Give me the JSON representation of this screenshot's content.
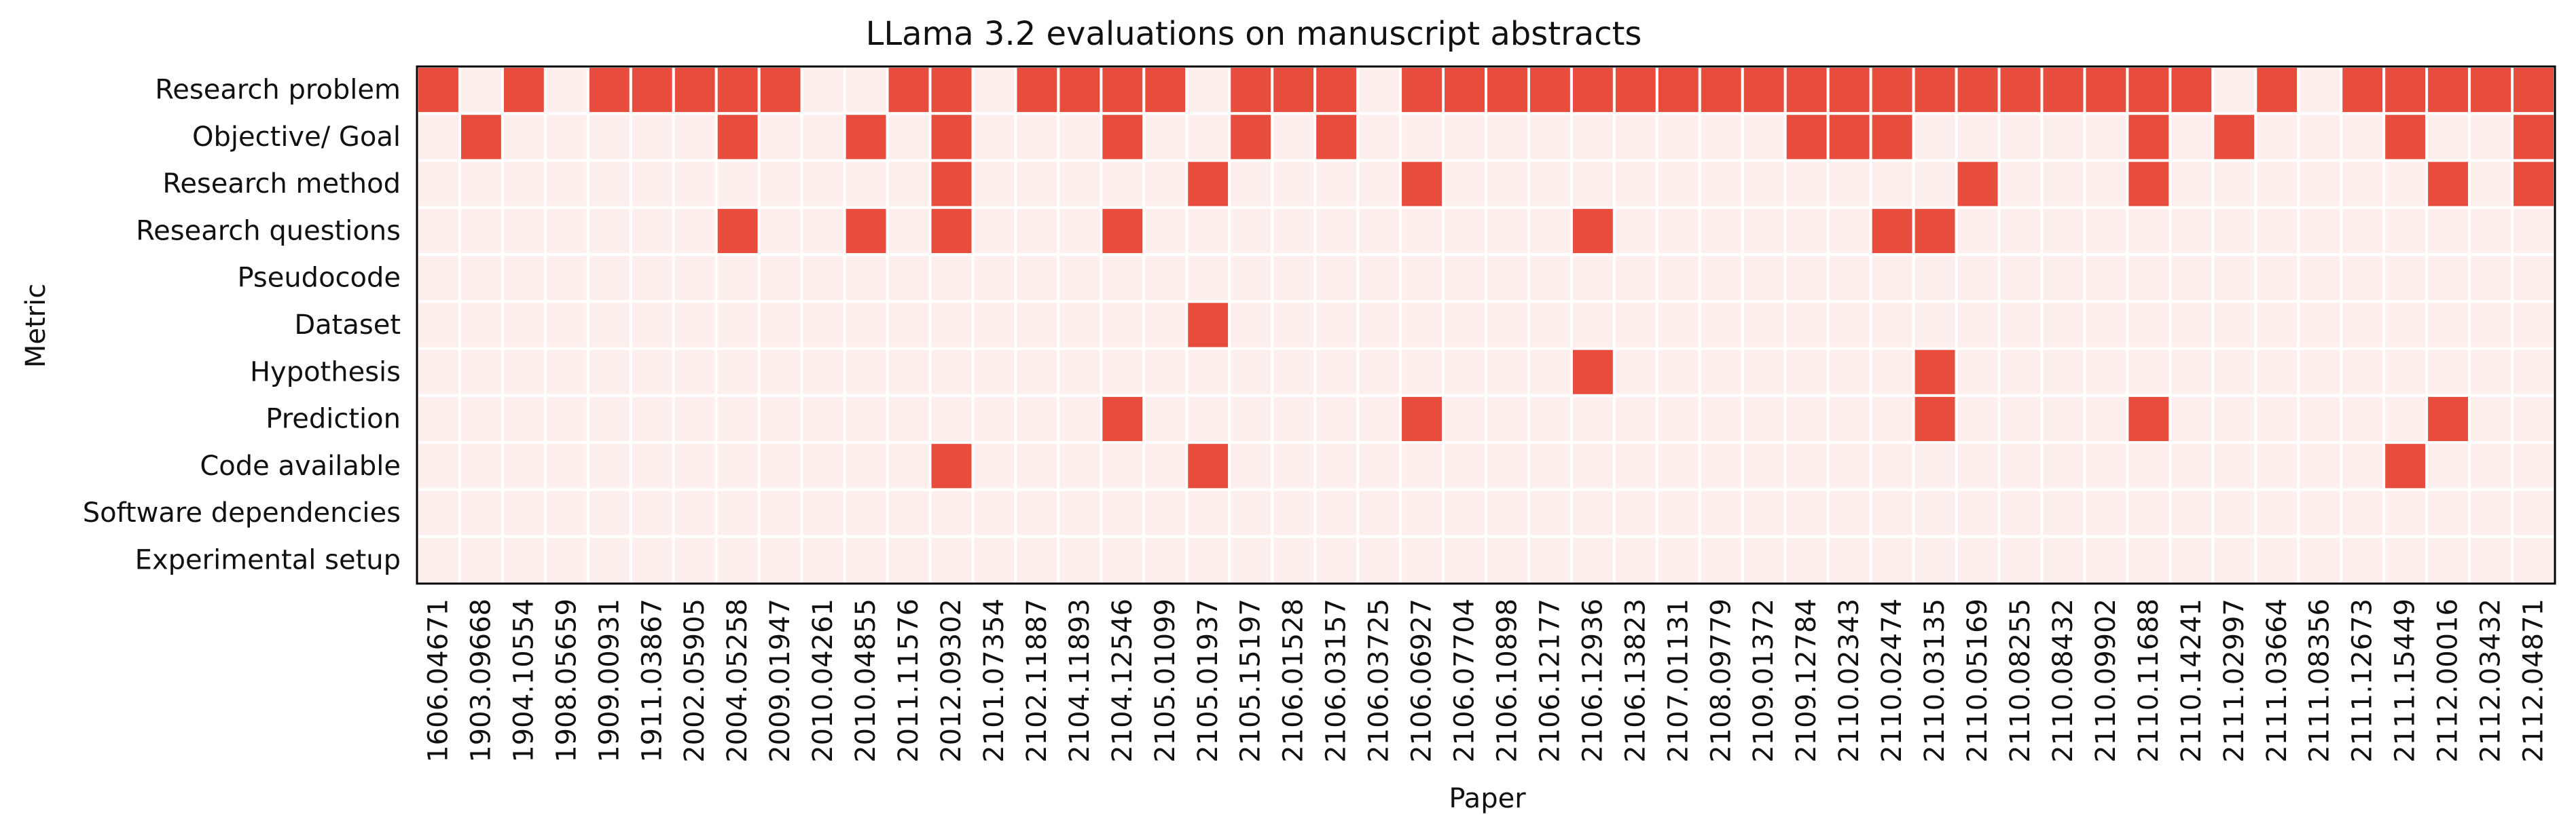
{
  "chart_data": {
    "type": "heatmap",
    "title": "LLama 3.2 evaluations on manuscript abstracts",
    "xlabel": "Paper",
    "ylabel": "Metric",
    "grid": false,
    "colors": {
      "present": "#e74c3c",
      "absent": "#fdefed",
      "cell_border": "#ffffff",
      "frame": "#000000"
    },
    "columns": [
      "1606.04671",
      "1903.09668",
      "1904.10554",
      "1908.05659",
      "1909.00931",
      "1911.03867",
      "2002.05905",
      "2004.05258",
      "2009.01947",
      "2010.04261",
      "2010.04855",
      "2011.11576",
      "2012.09302",
      "2101.07354",
      "2102.11887",
      "2104.11893",
      "2104.12546",
      "2105.01099",
      "2105.01937",
      "2105.15197",
      "2106.01528",
      "2106.03157",
      "2106.03725",
      "2106.06927",
      "2106.07704",
      "2106.10898",
      "2106.12177",
      "2106.12936",
      "2106.13823",
      "2107.01131",
      "2108.09779",
      "2109.01372",
      "2109.12784",
      "2110.02343",
      "2110.02474",
      "2110.03135",
      "2110.05169",
      "2110.08255",
      "2110.08432",
      "2110.09902",
      "2110.11688",
      "2110.14241",
      "2111.02997",
      "2111.03664",
      "2111.08356",
      "2111.12673",
      "2111.15449",
      "2112.00016",
      "2112.03432",
      "2112.04871"
    ],
    "rows": [
      "Research problem",
      "Objective/ Goal",
      "Research method",
      "Research questions",
      "Pseudocode",
      "Dataset",
      "Hypothesis",
      "Prediction",
      "Code available",
      "Software dependencies",
      "Experimental setup"
    ],
    "values": [
      [
        1,
        0,
        1,
        0,
        1,
        1,
        1,
        1,
        1,
        0,
        0,
        1,
        1,
        0,
        1,
        1,
        1,
        1,
        0,
        1,
        1,
        1,
        0,
        1,
        1,
        1,
        1,
        1,
        1,
        1,
        1,
        1,
        1,
        1,
        1,
        1,
        1,
        1,
        1,
        1,
        1,
        1,
        0,
        1,
        0,
        1,
        1,
        1,
        1,
        1
      ],
      [
        0,
        1,
        0,
        0,
        0,
        0,
        0,
        1,
        0,
        0,
        1,
        0,
        1,
        0,
        0,
        0,
        1,
        0,
        0,
        1,
        0,
        1,
        0,
        0,
        0,
        0,
        0,
        0,
        0,
        0,
        0,
        0,
        1,
        1,
        1,
        0,
        0,
        0,
        0,
        0,
        1,
        0,
        1,
        0,
        0,
        0,
        1,
        0,
        0,
        1
      ],
      [
        0,
        0,
        0,
        0,
        0,
        0,
        0,
        0,
        0,
        0,
        0,
        0,
        1,
        0,
        0,
        0,
        0,
        0,
        1,
        0,
        0,
        0,
        0,
        1,
        0,
        0,
        0,
        0,
        0,
        0,
        0,
        0,
        0,
        0,
        0,
        0,
        1,
        0,
        0,
        0,
        1,
        0,
        0,
        0,
        0,
        0,
        0,
        1,
        0,
        1
      ],
      [
        0,
        0,
        0,
        0,
        0,
        0,
        0,
        1,
        0,
        0,
        1,
        0,
        1,
        0,
        0,
        0,
        1,
        0,
        0,
        0,
        0,
        0,
        0,
        0,
        0,
        0,
        0,
        1,
        0,
        0,
        0,
        0,
        0,
        0,
        1,
        1,
        0,
        0,
        0,
        0,
        0,
        0,
        0,
        0,
        0,
        0,
        0,
        0,
        0,
        0
      ],
      [
        0,
        0,
        0,
        0,
        0,
        0,
        0,
        0,
        0,
        0,
        0,
        0,
        0,
        0,
        0,
        0,
        0,
        0,
        0,
        0,
        0,
        0,
        0,
        0,
        0,
        0,
        0,
        0,
        0,
        0,
        0,
        0,
        0,
        0,
        0,
        0,
        0,
        0,
        0,
        0,
        0,
        0,
        0,
        0,
        0,
        0,
        0,
        0,
        0,
        0
      ],
      [
        0,
        0,
        0,
        0,
        0,
        0,
        0,
        0,
        0,
        0,
        0,
        0,
        0,
        0,
        0,
        0,
        0,
        0,
        1,
        0,
        0,
        0,
        0,
        0,
        0,
        0,
        0,
        0,
        0,
        0,
        0,
        0,
        0,
        0,
        0,
        0,
        0,
        0,
        0,
        0,
        0,
        0,
        0,
        0,
        0,
        0,
        0,
        0,
        0,
        0
      ],
      [
        0,
        0,
        0,
        0,
        0,
        0,
        0,
        0,
        0,
        0,
        0,
        0,
        0,
        0,
        0,
        0,
        0,
        0,
        0,
        0,
        0,
        0,
        0,
        0,
        0,
        0,
        0,
        1,
        0,
        0,
        0,
        0,
        0,
        0,
        0,
        1,
        0,
        0,
        0,
        0,
        0,
        0,
        0,
        0,
        0,
        0,
        0,
        0,
        0,
        0
      ],
      [
        0,
        0,
        0,
        0,
        0,
        0,
        0,
        0,
        0,
        0,
        0,
        0,
        0,
        0,
        0,
        0,
        1,
        0,
        0,
        0,
        0,
        0,
        0,
        1,
        0,
        0,
        0,
        0,
        0,
        0,
        0,
        0,
        0,
        0,
        0,
        1,
        0,
        0,
        0,
        0,
        1,
        0,
        0,
        0,
        0,
        0,
        0,
        1,
        0,
        0
      ],
      [
        0,
        0,
        0,
        0,
        0,
        0,
        0,
        0,
        0,
        0,
        0,
        0,
        1,
        0,
        0,
        0,
        0,
        0,
        1,
        0,
        0,
        0,
        0,
        0,
        0,
        0,
        0,
        0,
        0,
        0,
        0,
        0,
        0,
        0,
        0,
        0,
        0,
        0,
        0,
        0,
        0,
        0,
        0,
        0,
        0,
        0,
        1,
        0,
        0,
        0
      ],
      [
        0,
        0,
        0,
        0,
        0,
        0,
        0,
        0,
        0,
        0,
        0,
        0,
        0,
        0,
        0,
        0,
        0,
        0,
        0,
        0,
        0,
        0,
        0,
        0,
        0,
        0,
        0,
        0,
        0,
        0,
        0,
        0,
        0,
        0,
        0,
        0,
        0,
        0,
        0,
        0,
        0,
        0,
        0,
        0,
        0,
        0,
        0,
        0,
        0,
        0
      ],
      [
        0,
        0,
        0,
        0,
        0,
        0,
        0,
        0,
        0,
        0,
        0,
        0,
        0,
        0,
        0,
        0,
        0,
        0,
        0,
        0,
        0,
        0,
        0,
        0,
        0,
        0,
        0,
        0,
        0,
        0,
        0,
        0,
        0,
        0,
        0,
        0,
        0,
        0,
        0,
        0,
        0,
        0,
        0,
        0,
        0,
        0,
        0,
        0,
        0,
        0
      ]
    ]
  }
}
